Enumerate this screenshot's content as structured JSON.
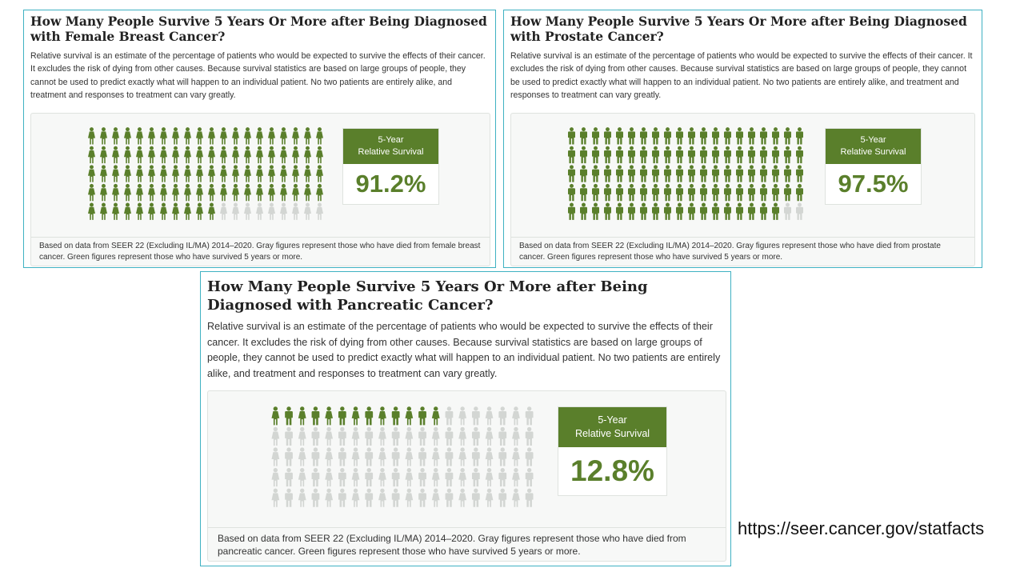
{
  "source_url": "https://seer.cancer.gov/statfacts",
  "colors": {
    "survived": "#5a7f2b",
    "died": "#d3d6d3",
    "border": "#3fb1c2"
  },
  "cards": [
    {
      "title": "How Many People Survive 5 Years Or More after Being Diagnosed with Female Breast Cancer?",
      "description": "Relative survival is an estimate of the percentage of patients who would be expected to survive the effects of their cancer. It excludes the risk of dying from other causes. Because survival statistics are based on large groups of people, they cannot be used to predict exactly what will happen to an individual patient. No two patients are entirely alike, and treatment and responses to treatment can vary greatly.",
      "stat_header_line1": "5-Year",
      "stat_header_line2": "Relative Survival",
      "stat_value": "91.2%",
      "note": "Based on data from SEER 22 (Excluding IL/MA) 2014–2020. Gray figures represent those who have died from female breast cancer. Green figures represent those who have survived 5 years or more."
    },
    {
      "title": "How Many People Survive 5 Years Or More after Being Diagnosed with Prostate Cancer?",
      "description": "Relative survival is an estimate of the percentage of patients who would be expected to survive the effects of their cancer. It excludes the risk of dying from other causes. Because survival statistics are based on large groups of people, they cannot be used to predict exactly what will happen to an individual patient. No two patients are entirely alike, and treatment and responses to treatment can vary greatly.",
      "stat_header_line1": "5-Year",
      "stat_header_line2": "Relative Survival",
      "stat_value": "97.5%",
      "note": "Based on data from SEER 22 (Excluding IL/MA) 2014–2020. Gray figures represent those who have died from prostate cancer. Green figures represent those who have survived 5 years or more."
    },
    {
      "title": "How Many People Survive 5 Years Or More after Being Diagnosed with Pancreatic Cancer?",
      "description": "Relative survival is an estimate of the percentage of patients who would be expected to survive the effects of their cancer. It excludes the risk of dying from other causes. Because survival statistics are based on large groups of people, they cannot be used to predict exactly what will happen to an individual patient. No two patients are entirely alike, and treatment and responses to treatment can vary greatly.",
      "stat_header_line1": "5-Year",
      "stat_header_line2": "Relative Survival",
      "stat_value": "12.8%",
      "note": "Based on data from SEER 22 (Excluding IL/MA) 2014–2020. Gray figures represent those who have died from pancreatic cancer. Green figures represent those who have survived 5 years or more."
    }
  ],
  "chart_data": [
    {
      "type": "pictogram",
      "title": "Female Breast Cancer",
      "total_figures": 100,
      "figure_rows": 5,
      "figure_cols": 20,
      "survived_percent": 91.2,
      "died_percent": 8.8,
      "figure_style": "female"
    },
    {
      "type": "pictogram",
      "title": "Prostate Cancer",
      "total_figures": 100,
      "figure_rows": 5,
      "figure_cols": 20,
      "survived_percent": 97.5,
      "died_percent": 2.5,
      "figure_style": "male"
    },
    {
      "type": "pictogram",
      "title": "Pancreatic Cancer",
      "total_figures": 100,
      "figure_rows": 5,
      "figure_cols": 20,
      "survived_percent": 12.8,
      "died_percent": 87.2,
      "figure_style": "mixed"
    }
  ]
}
